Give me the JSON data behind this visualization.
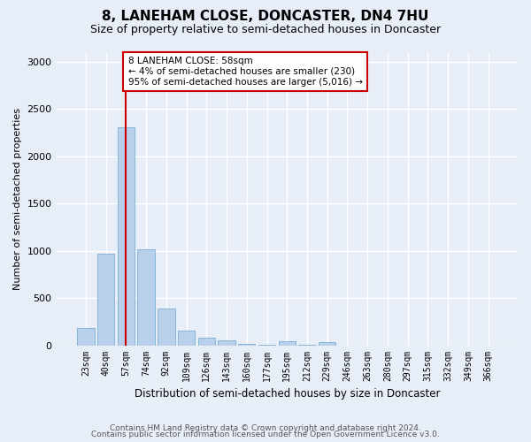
{
  "title1": "8, LANEHAM CLOSE, DONCASTER, DN4 7HU",
  "title2": "Size of property relative to semi-detached houses in Doncaster",
  "xlabel": "Distribution of semi-detached houses by size in Doncaster",
  "ylabel": "Number of semi-detached properties",
  "categories": [
    "23sqm",
    "40sqm",
    "57sqm",
    "74sqm",
    "92sqm",
    "109sqm",
    "126sqm",
    "143sqm",
    "160sqm",
    "177sqm",
    "195sqm",
    "212sqm",
    "229sqm",
    "246sqm",
    "263sqm",
    "280sqm",
    "297sqm",
    "315sqm",
    "332sqm",
    "349sqm",
    "366sqm"
  ],
  "values": [
    185,
    975,
    2310,
    1015,
    390,
    160,
    85,
    55,
    15,
    10,
    45,
    10,
    40,
    5,
    5,
    5,
    5,
    5,
    5,
    5,
    5
  ],
  "bar_color": "#b8d0ea",
  "bar_edgecolor": "#7aadd4",
  "annotation_text": "8 LANEHAM CLOSE: 58sqm\n← 4% of semi-detached houses are smaller (230)\n95% of semi-detached houses are larger (5,016) →",
  "annotation_box_facecolor": "#ffffff",
  "annotation_box_edgecolor": "#cc0000",
  "vline_color": "#cc0000",
  "vline_x": 2.0,
  "ylim": [
    0,
    3100
  ],
  "yticks": [
    0,
    500,
    1000,
    1500,
    2000,
    2500,
    3000
  ],
  "footer1": "Contains HM Land Registry data © Crown copyright and database right 2024.",
  "footer2": "Contains public sector information licensed under the Open Government Licence v3.0.",
  "bg_color": "#e8eef8",
  "title1_fontsize": 11,
  "title2_fontsize": 9,
  "annotation_fontsize": 7.5,
  "ytick_fontsize": 8,
  "xtick_fontsize": 7,
  "ylabel_fontsize": 8,
  "xlabel_fontsize": 8.5,
  "footer_fontsize": 6.5
}
